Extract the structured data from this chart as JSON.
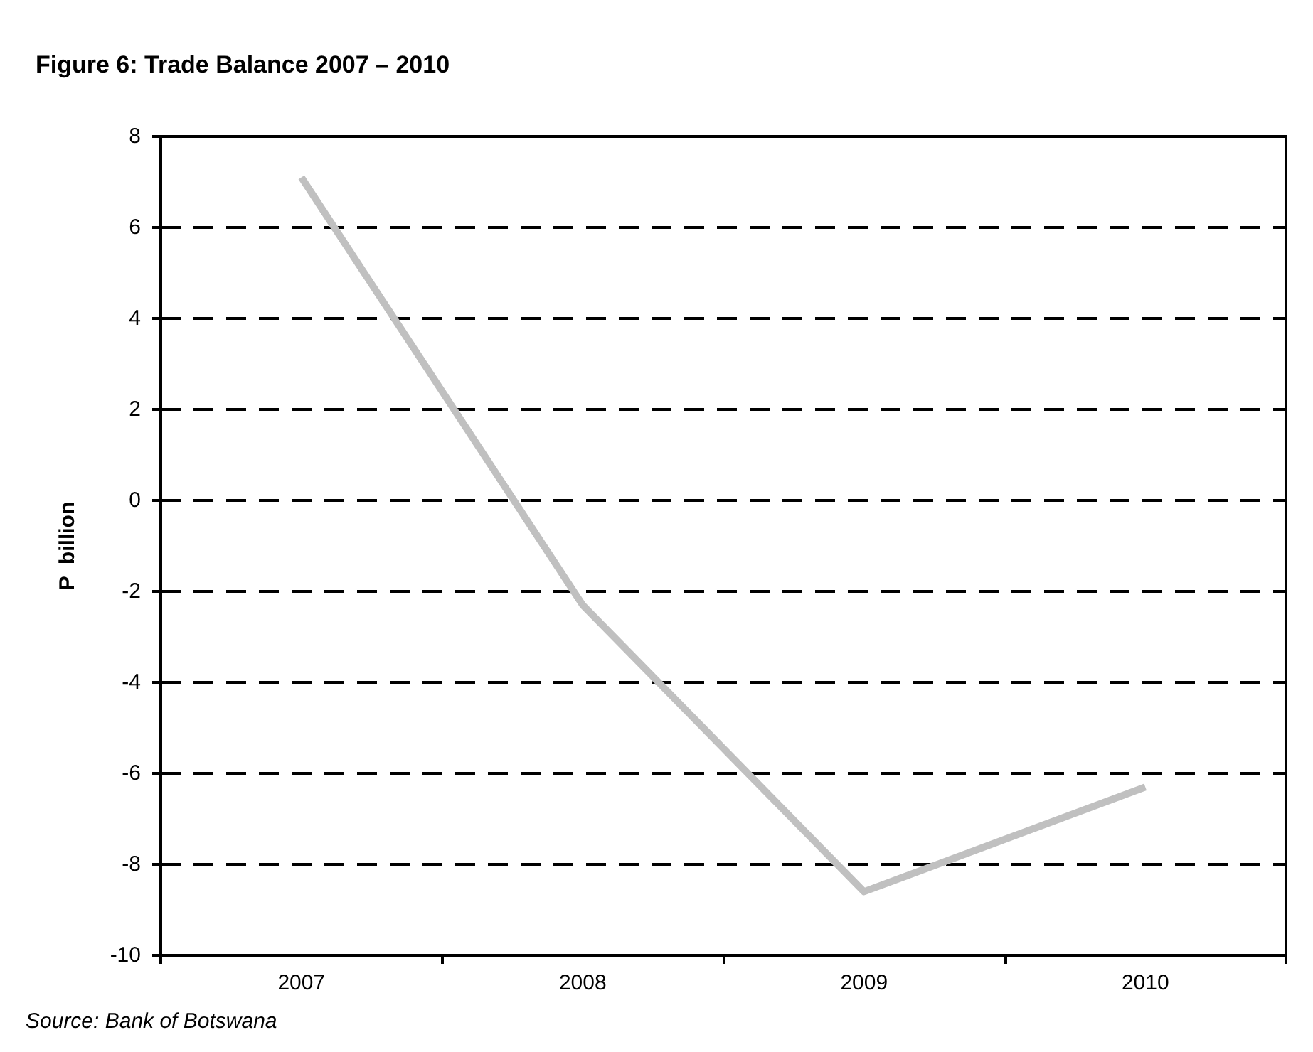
{
  "chart_data": {
    "type": "line",
    "title": "Figure 6: Trade Balance 2007 – 2010",
    "ylabel": "P  billion",
    "categories": [
      "2007",
      "2008",
      "2009",
      "2010"
    ],
    "series": [
      {
        "color": "#c0c0c0",
        "values": [
          7.1,
          -2.3,
          -8.6,
          -6.3
        ]
      }
    ],
    "ylim": [
      -10,
      8
    ],
    "yticks": [
      -10,
      -8,
      -6,
      -4,
      -2,
      0,
      2,
      4,
      6,
      8
    ],
    "grid": "y",
    "marker": "none",
    "line_style": "solid",
    "annotations": [
      "Source: Bank of Botswana"
    ]
  }
}
